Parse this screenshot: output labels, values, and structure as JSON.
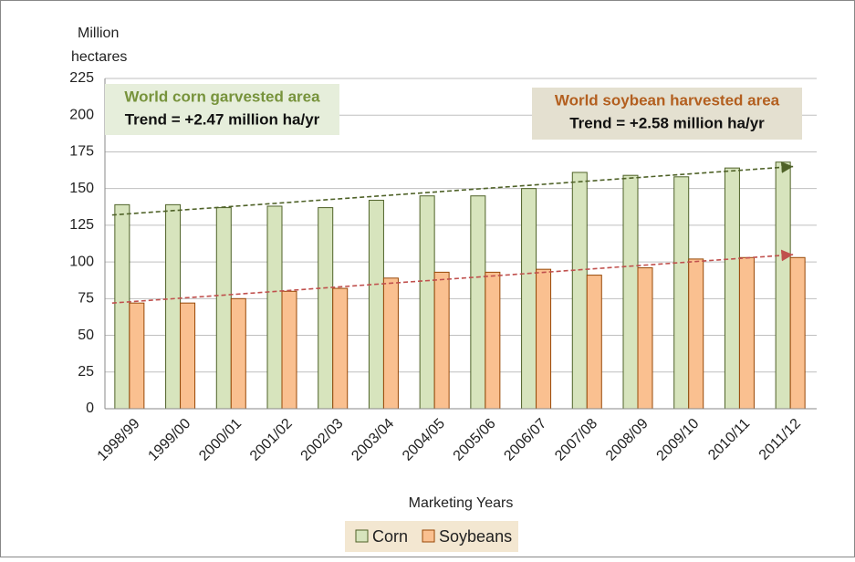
{
  "chart_data": {
    "type": "bar",
    "y_label": [
      "Million",
      "hectares"
    ],
    "x_label": "Marketing Years",
    "categories": [
      "1998/99",
      "1999/00",
      "2000/01",
      "2001/02",
      "2002/03",
      "2003/04",
      "2004/05",
      "2005/06",
      "2006/07",
      "2007/08",
      "2008/09",
      "2009/10",
      "2010/11",
      "2011/12"
    ],
    "series": [
      {
        "name": "Corn",
        "color": "#d7e4bd",
        "edge": "#4f6228",
        "values": [
          139,
          139,
          137,
          138,
          137,
          142,
          145,
          145,
          150,
          161,
          159,
          158,
          164,
          168
        ]
      },
      {
        "name": "Soybeans",
        "color": "#fac090",
        "edge": "#984807",
        "values": [
          72,
          72,
          75,
          80,
          82,
          89,
          93,
          93,
          95,
          91,
          96,
          102,
          103,
          103
        ]
      }
    ],
    "annotations": [
      {
        "title": "World corn garvested area",
        "text": "Trend = +2.47 million ha/yr",
        "values": [
          132,
          165
        ],
        "color": "#4f6228",
        "title_color": "#77933c",
        "box": "#e6eedb"
      },
      {
        "title": "World soybean harvested area",
        "text": "Trend = +2.58 million ha/yr",
        "values": [
          72,
          105
        ],
        "color": "#c0504d",
        "title_color": "#b35f1f",
        "box": "#e4e0d0"
      }
    ],
    "ylim": [
      0,
      225
    ],
    "yticks": [
      0,
      25,
      50,
      75,
      100,
      125,
      150,
      175,
      200,
      225
    ],
    "grid": true
  }
}
